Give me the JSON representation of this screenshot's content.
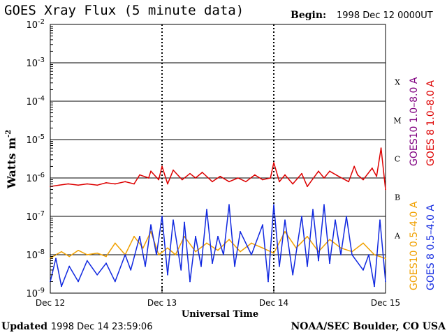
{
  "header": {
    "title": "GOES Xray Flux (5 minute data)",
    "begin_label": "Begin:",
    "begin_value": "1998 Dec 12 0000UT"
  },
  "footer": {
    "updated_label": "Updated",
    "updated_value": "1998 Dec 14 23:59:06",
    "credit": "NOAA/SEC Boulder, CO USA"
  },
  "chart_data": {
    "type": "line",
    "title": "GOES Xray Flux (5 minute data)",
    "xlabel": "Universal Time",
    "ylabel": "Watts m",
    "ylabel_exponent": "-2",
    "yscale": "log",
    "ylim": [
      1e-09,
      0.01
    ],
    "y_tick_labels": [
      {
        "base": "10",
        "exp": "-9",
        "value": 1e-09
      },
      {
        "base": "10",
        "exp": "-8",
        "value": 1e-08
      },
      {
        "base": "10",
        "exp": "-7",
        "value": 1e-07
      },
      {
        "base": "10",
        "exp": "-6",
        "value": 1e-06
      },
      {
        "base": "10",
        "exp": "-5",
        "value": 1e-05
      },
      {
        "base": "10",
        "exp": "-4",
        "value": 0.0001
      },
      {
        "base": "10",
        "exp": "-3",
        "value": 0.001
      },
      {
        "base": "10",
        "exp": "-2",
        "value": 0.01
      }
    ],
    "x_unit": "days since 1998 Dec 12 00:00 UT",
    "xlim": [
      0,
      3
    ],
    "x_tick_labels": [
      {
        "label": "Dec 12",
        "value": 0
      },
      {
        "label": "Dec 13",
        "value": 1
      },
      {
        "label": "Dec 14",
        "value": 2
      },
      {
        "label": "Dec 15",
        "value": 3
      }
    ],
    "flare_classes": [
      {
        "label": "A",
        "value": 1e-08
      },
      {
        "label": "B",
        "value": 1e-07
      },
      {
        "label": "C",
        "value": 1e-06
      },
      {
        "label": "M",
        "value": 1e-05
      },
      {
        "label": "X",
        "value": 0.0001
      }
    ],
    "horizontal_gridlines": [
      1e-08,
      1e-07,
      1e-06,
      1e-05,
      0.0001,
      0.001
    ],
    "series": [
      {
        "name": "GOES10 1.0–8.0 A",
        "color": "#800080",
        "x": [],
        "y": []
      },
      {
        "name": "GOES 8 1.0–8.0 A",
        "color": "#dd0000",
        "x": [
          0,
          0.08,
          0.16,
          0.25,
          0.33,
          0.42,
          0.5,
          0.58,
          0.67,
          0.75,
          0.8,
          0.88,
          0.9,
          0.97,
          1.0,
          1.05,
          1.1,
          1.18,
          1.25,
          1.3,
          1.36,
          1.45,
          1.52,
          1.6,
          1.68,
          1.75,
          1.83,
          1.9,
          1.97,
          2.0,
          2.05,
          2.1,
          2.17,
          2.25,
          2.3,
          2.4,
          2.45,
          2.5,
          2.58,
          2.67,
          2.72,
          2.75,
          2.8,
          2.88,
          2.92,
          2.96,
          3.0
        ],
        "y": [
          6e-07,
          6.5e-07,
          7e-07,
          6.5e-07,
          7e-07,
          6.5e-07,
          7.5e-07,
          7e-07,
          8e-07,
          7e-07,
          1.2e-06,
          1e-06,
          1.5e-06,
          9e-07,
          2e-06,
          7e-07,
          1.6e-06,
          9e-07,
          1.3e-06,
          1e-06,
          1.4e-06,
          8e-07,
          1.1e-06,
          8e-07,
          1e-06,
          8e-07,
          1.2e-06,
          9e-07,
          1e-06,
          2.5e-06,
          8e-07,
          1.2e-06,
          7e-07,
          1.3e-06,
          6e-07,
          1.5e-06,
          1e-06,
          1.5e-06,
          1.1e-06,
          8e-07,
          2e-06,
          1.2e-06,
          9e-07,
          1.8e-06,
          1.1e-06,
          6e-06,
          5e-07
        ]
      },
      {
        "name": "GOES10 0.5–4.0 A",
        "color": "#f0a000",
        "x": [
          0,
          0.05,
          0.1,
          0.17,
          0.25,
          0.33,
          0.42,
          0.5,
          0.58,
          0.67,
          0.75,
          0.83,
          0.9,
          0.97,
          1.05,
          1.12,
          1.2,
          1.3,
          1.4,
          1.5,
          1.6,
          1.7,
          1.8,
          1.9,
          2.0,
          2.1,
          2.2,
          2.3,
          2.4,
          2.5,
          2.6,
          2.7,
          2.8,
          2.9,
          3.0
        ],
        "y": [
          8e-09,
          1e-08,
          1.2e-08,
          9e-09,
          1.3e-08,
          1e-08,
          1.1e-08,
          9e-09,
          2e-08,
          1e-08,
          3e-08,
          1.5e-08,
          4e-08,
          1e-08,
          1.5e-08,
          1e-08,
          3e-08,
          1.2e-08,
          2e-08,
          1.3e-08,
          2.5e-08,
          1.2e-08,
          2e-08,
          1.5e-08,
          1.1e-08,
          4e-08,
          1.5e-08,
          3e-08,
          1.2e-08,
          2.5e-08,
          1.5e-08,
          1.2e-08,
          2e-08,
          1e-08,
          8e-09
        ]
      },
      {
        "name": "GOES 8 0.5–4.0 A",
        "color": "#1028e0",
        "x": [
          0,
          0.05,
          0.1,
          0.17,
          0.25,
          0.33,
          0.42,
          0.5,
          0.58,
          0.67,
          0.72,
          0.8,
          0.85,
          0.9,
          0.95,
          1.0,
          1.05,
          1.1,
          1.17,
          1.2,
          1.25,
          1.3,
          1.35,
          1.4,
          1.45,
          1.5,
          1.55,
          1.6,
          1.65,
          1.7,
          1.8,
          1.9,
          1.95,
          2.0,
          2.05,
          2.1,
          2.17,
          2.25,
          2.3,
          2.35,
          2.4,
          2.45,
          2.5,
          2.55,
          2.6,
          2.65,
          2.7,
          2.8,
          2.85,
          2.9,
          2.95,
          3.0
        ],
        "y": [
          2e-09,
          8e-09,
          1.5e-09,
          5e-09,
          2e-09,
          7e-09,
          3e-09,
          6e-09,
          2e-09,
          1e-08,
          4e-09,
          3e-08,
          5e-09,
          6e-08,
          1e-08,
          1e-07,
          3e-09,
          8e-08,
          4e-09,
          7e-08,
          2e-09,
          3e-08,
          5e-09,
          1.5e-07,
          6e-09,
          3e-08,
          1e-08,
          2e-07,
          5e-09,
          4e-08,
          1e-08,
          6e-08,
          2e-09,
          2e-07,
          5e-09,
          8e-08,
          3e-09,
          1e-07,
          5e-09,
          1.5e-07,
          7e-09,
          2e-07,
          6e-09,
          8e-08,
          1e-08,
          1e-07,
          1e-08,
          4e-09,
          1e-08,
          1.5e-09,
          8e-08,
          2e-09
        ]
      }
    ]
  }
}
